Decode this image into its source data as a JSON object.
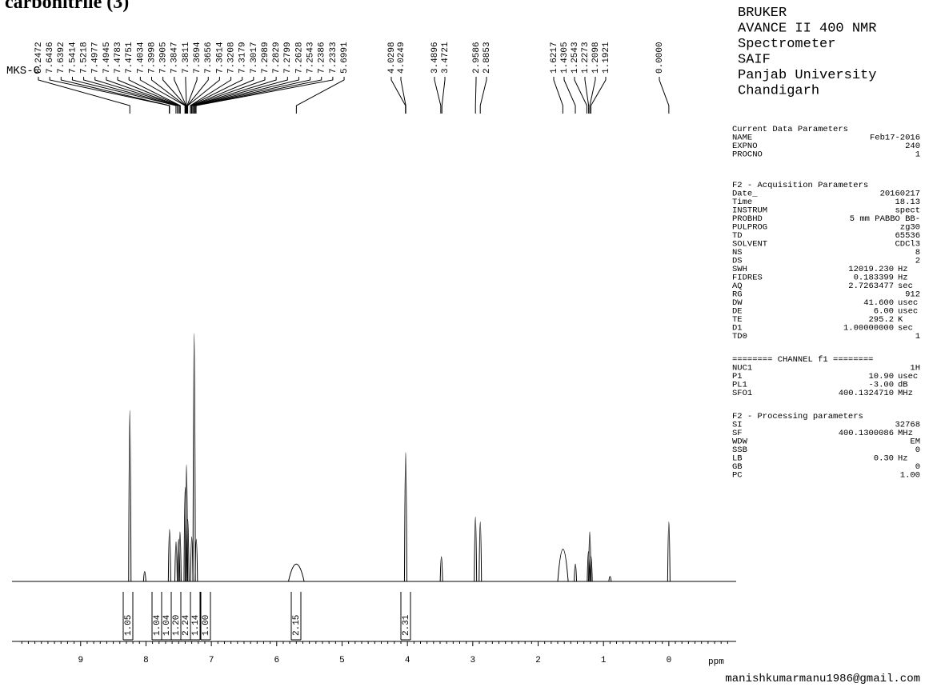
{
  "title": "carbonitrile (3)",
  "sample_label": "MKS-C",
  "peak_labels": {
    "group_1": [
      "8.2472",
      "7.6436",
      "7.6392",
      "7.5414",
      "7.5218",
      "7.4977",
      "7.4945",
      "7.4783",
      "7.4751",
      "7.4034",
      "7.3998",
      "7.3905",
      "7.3847",
      "7.3811",
      "7.3694",
      "7.3656",
      "7.3614",
      "7.3208",
      "7.3179",
      "7.3017",
      "7.2989",
      "7.2829",
      "7.2799",
      "7.2628",
      "7.2543",
      "7.2386",
      "7.2333",
      "5.6991"
    ],
    "group_2": [
      "4.0298",
      "4.0249"
    ],
    "group_3": [
      "3.4896",
      "3.4721"
    ],
    "group_4": [
      "2.9586",
      "2.8853"
    ],
    "group_5": [
      "1.6217",
      "1.4305",
      "1.2543",
      "1.2273",
      "1.2098",
      "1.1921"
    ],
    "group_6": [
      "0.0000"
    ]
  },
  "spectrum": {
    "peaks": [
      {
        "ppm": 8.247,
        "intensity": 69
      },
      {
        "ppm": 8.02,
        "intensity": 4
      },
      {
        "ppm": 7.64,
        "intensity": 21
      },
      {
        "ppm": 7.54,
        "intensity": 16
      },
      {
        "ppm": 7.5,
        "intensity": 17
      },
      {
        "ppm": 7.48,
        "intensity": 20
      },
      {
        "ppm": 7.4,
        "intensity": 38
      },
      {
        "ppm": 7.38,
        "intensity": 47
      },
      {
        "ppm": 7.36,
        "intensity": 25
      },
      {
        "ppm": 7.3,
        "intensity": 18
      },
      {
        "ppm": 7.263,
        "intensity": 100
      },
      {
        "ppm": 7.23,
        "intensity": 17
      },
      {
        "ppm": 5.7,
        "intensity": 7,
        "width": 0.12
      },
      {
        "ppm": 4.027,
        "intensity": 52
      },
      {
        "ppm": 3.48,
        "intensity": 10
      },
      {
        "ppm": 2.959,
        "intensity": 26
      },
      {
        "ppm": 2.885,
        "intensity": 24
      },
      {
        "ppm": 1.62,
        "intensity": 13,
        "width": 0.08
      },
      {
        "ppm": 1.43,
        "intensity": 7
      },
      {
        "ppm": 1.23,
        "intensity": 12
      },
      {
        "ppm": 1.21,
        "intensity": 20
      },
      {
        "ppm": 1.19,
        "intensity": 10
      },
      {
        "ppm": 0.9,
        "intensity": 2
      },
      {
        "ppm": 0.0,
        "intensity": 24
      }
    ]
  },
  "integrals": [
    "1.05",
    "1.04",
    "1.04",
    "1.20",
    "2.24",
    "1.14",
    "1.00",
    "2.15",
    "2.31"
  ],
  "axis": {
    "xlim": [
      10.05,
      -1.03
    ],
    "xticks": [
      9,
      8,
      7,
      6,
      5,
      4,
      3,
      2,
      1,
      0
    ],
    "unit": "ppm"
  },
  "instrument": [
    "BRUKER",
    "AVANCE II 400 NMR",
    "Spectrometer",
    "SAIF",
    "Panjab University",
    "Chandigarh"
  ],
  "parameters": [
    {
      "header": "Current Data Parameters",
      "rows": [
        [
          "NAME",
          "Feb17-2016",
          ""
        ],
        [
          "EXPNO",
          "240",
          ""
        ],
        [
          "PROCNO",
          "1",
          ""
        ]
      ]
    },
    {
      "header": "F2 - Acquisition Parameters",
      "rows": [
        [
          "Date_",
          "20160217",
          ""
        ],
        [
          "Time",
          "18.13",
          ""
        ],
        [
          "INSTRUM",
          "spect",
          ""
        ],
        [
          "PROBHD",
          "5 mm PABBO BB-",
          ""
        ],
        [
          "PULPROG",
          "zg30",
          ""
        ],
        [
          "TD",
          "65536",
          ""
        ],
        [
          "SOLVENT",
          "CDCl3",
          ""
        ],
        [
          "NS",
          "8",
          ""
        ],
        [
          "DS",
          "2",
          ""
        ],
        [
          "SWH",
          "12019.230",
          "Hz"
        ],
        [
          "FIDRES",
          "0.183399",
          "Hz"
        ],
        [
          "AQ",
          "2.7263477",
          "sec"
        ],
        [
          "RG",
          "912",
          ""
        ],
        [
          "DW",
          "41.600",
          "usec"
        ],
        [
          "DE",
          "6.00",
          "usec"
        ],
        [
          "TE",
          "295.2",
          "K"
        ],
        [
          "D1",
          "1.00000000",
          "sec"
        ],
        [
          "TD0",
          "1",
          ""
        ]
      ]
    },
    {
      "header": "======== CHANNEL f1 ========",
      "rows": [
        [
          "NUC1",
          "1H",
          ""
        ],
        [
          "P1",
          "10.90",
          "usec"
        ],
        [
          "PL1",
          "-3.00",
          "dB"
        ],
        [
          "SFO1",
          "400.1324710",
          "MHz"
        ]
      ]
    },
    {
      "header": "F2 - Processing parameters",
      "rows": [
        [
          "SI",
          "32768",
          ""
        ],
        [
          "SF",
          "400.1300086",
          "MHz"
        ],
        [
          "WDW",
          "EM",
          ""
        ],
        [
          "SSB",
          "0",
          ""
        ],
        [
          "LB",
          "0.30",
          "Hz"
        ],
        [
          "GB",
          "0",
          ""
        ],
        [
          "PC",
          "1.00",
          ""
        ]
      ]
    }
  ],
  "footer": "manishkumarmanu1986@gmail.com"
}
